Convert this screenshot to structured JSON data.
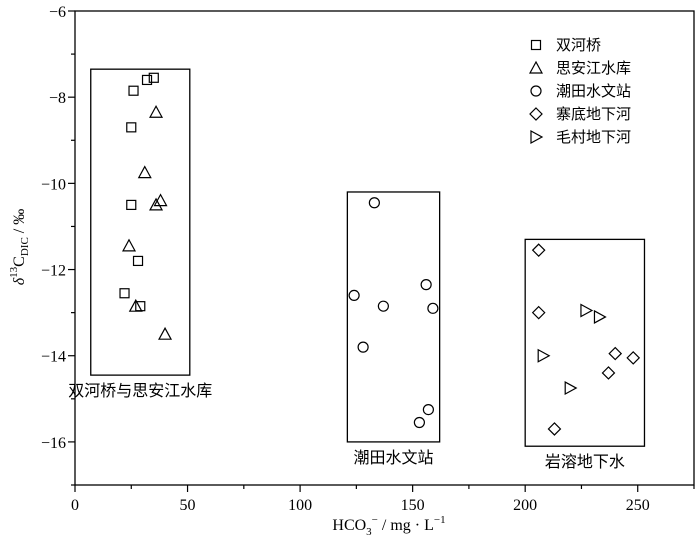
{
  "chart_data": {
    "type": "scatter",
    "xlabel_main": "HCO",
    "xlabel_sub": "3",
    "xlabel_sup": "−",
    "xlabel_rest": " / mg · L",
    "xlabel_unit_sup": "−1",
    "ylabel_main": "δ",
    "ylabel_sup": "13",
    "ylabel_c": "C",
    "ylabel_sub": "DIC",
    "ylabel_rest": " / ‰",
    "xlim": [
      0,
      275
    ],
    "ylim": [
      -17,
      -6
    ],
    "xticks": [
      0,
      50,
      100,
      150,
      200,
      250
    ],
    "yticks": [
      -16,
      -14,
      -12,
      -10,
      -8,
      -6
    ],
    "ytick_labels": [
      "−16",
      "−14",
      "−12",
      "−10",
      "−8",
      "−6"
    ],
    "series": [
      {
        "name": "双河桥",
        "marker": "square",
        "points": [
          [
            22,
            -12.55
          ],
          [
            25,
            -10.5
          ],
          [
            25,
            -8.7
          ],
          [
            26,
            -7.85
          ],
          [
            28,
            -11.8
          ],
          [
            29,
            -12.85
          ],
          [
            32,
            -7.6
          ],
          [
            35,
            -7.55
          ]
        ]
      },
      {
        "name": "思安江水库",
        "marker": "triangle-up",
        "points": [
          [
            24,
            -11.45
          ],
          [
            27,
            -12.85
          ],
          [
            31,
            -9.75
          ],
          [
            36,
            -10.5
          ],
          [
            36,
            -8.35
          ],
          [
            38,
            -10.4
          ],
          [
            40,
            -13.5
          ]
        ]
      },
      {
        "name": "潮田水文站",
        "marker": "circle",
        "points": [
          [
            124,
            -12.6
          ],
          [
            128,
            -13.8
          ],
          [
            133,
            -10.45
          ],
          [
            137,
            -12.85
          ],
          [
            153,
            -15.55
          ],
          [
            156,
            -12.35
          ],
          [
            157,
            -15.25
          ],
          [
            159,
            -12.9
          ]
        ]
      },
      {
        "name": "寨底地下河",
        "marker": "diamond",
        "points": [
          [
            206,
            -11.55
          ],
          [
            206,
            -13.0
          ],
          [
            213,
            -15.7
          ],
          [
            237,
            -14.4
          ],
          [
            240,
            -13.95
          ],
          [
            248,
            -14.05
          ]
        ]
      },
      {
        "name": "毛村地下河",
        "marker": "triangle-right",
        "points": [
          [
            208,
            -14.0
          ],
          [
            220,
            -14.75
          ],
          [
            227,
            -12.95
          ],
          [
            233,
            -13.1
          ]
        ]
      }
    ],
    "groups": [
      {
        "label": "双河桥与思安江水库",
        "x_range": [
          7,
          51
        ],
        "y_range": [
          -14.45,
          -7.35
        ]
      },
      {
        "label": "潮田水文站",
        "x_range": [
          121,
          162
        ],
        "y_range": [
          -16.0,
          -10.2
        ]
      },
      {
        "label": "岩溶地下水",
        "x_range": [
          200,
          253
        ],
        "y_range": [
          -16.1,
          -11.3
        ]
      }
    ],
    "legend_position": "top-right"
  }
}
